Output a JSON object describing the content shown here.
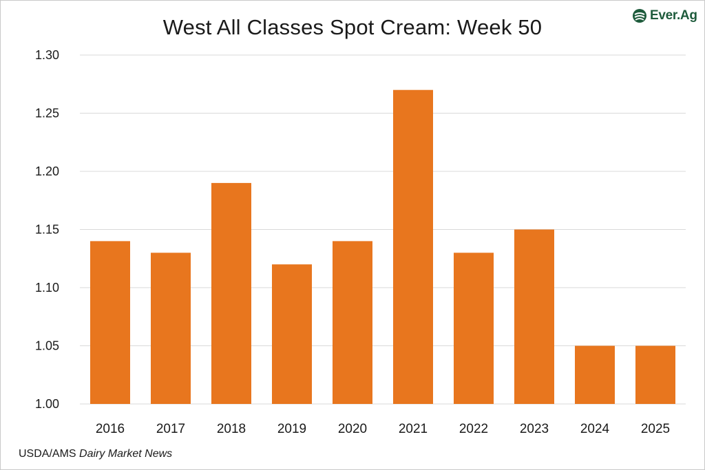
{
  "chart_data": {
    "type": "bar",
    "title": "West All Classes Spot Cream: Week 50",
    "categories": [
      "2016",
      "2017",
      "2018",
      "2019",
      "2020",
      "2021",
      "2022",
      "2023",
      "2024",
      "2025"
    ],
    "values": [
      1.14,
      1.13,
      1.19,
      1.12,
      1.14,
      1.27,
      1.13,
      1.15,
      1.05,
      1.05
    ],
    "ylim": [
      1.0,
      1.3
    ],
    "yticks": [
      "1.00",
      "1.05",
      "1.10",
      "1.15",
      "1.20",
      "1.25",
      "1.30"
    ],
    "xlabel": "",
    "ylabel": "",
    "grid": true,
    "bar_color": "#e8761e",
    "grid_color": "#d9d9d9"
  },
  "brand": {
    "logo_text": "Ever.Ag",
    "logo_color": "#1e5b3c",
    "logo_icon": "ever-ag-logo-icon"
  },
  "source": {
    "prefix": "USDA/AMS ",
    "italic": "Dairy Market News"
  }
}
